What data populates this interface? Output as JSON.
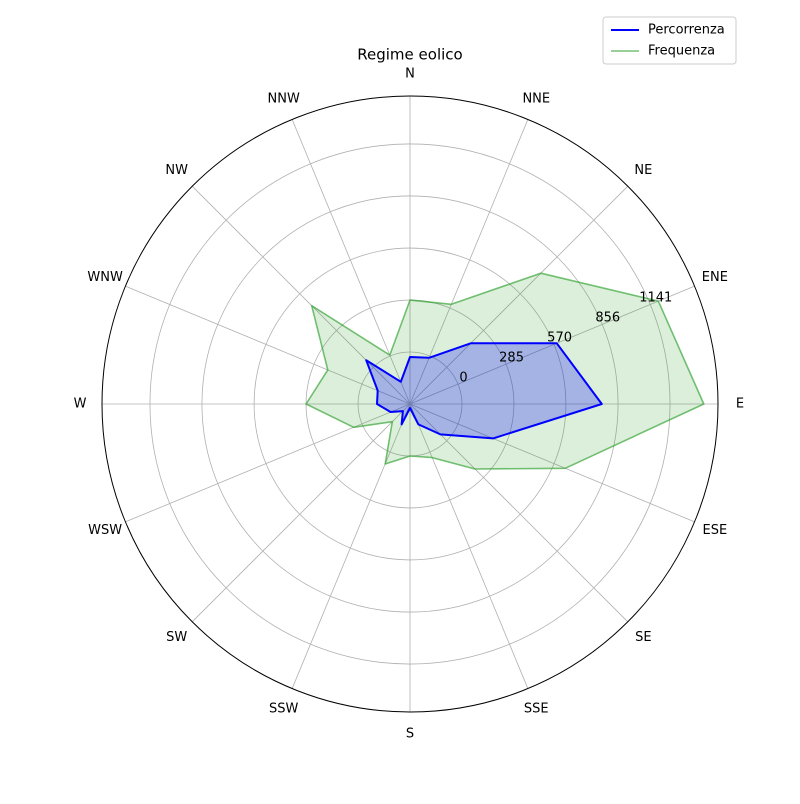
{
  "chart_data": {
    "type": "radar",
    "title": "Regime eolico",
    "categories": [
      "N",
      "NNE",
      "NE",
      "ENE",
      "E",
      "ESE",
      "SE",
      "SSE",
      "S",
      "SSW",
      "SW",
      "WSW",
      "W",
      "WNW",
      "NW",
      "NNW"
    ],
    "series": [
      {
        "name": "Percorrenza",
        "color": "#0000ff",
        "values": [
          -27,
          -11,
          186,
          586,
          767,
          208,
          -49,
          -164,
          -263,
          -164,
          -230,
          -170,
          -104,
          -93,
          55,
          -153
        ]
      },
      {
        "name": "Frequenza",
        "color": "#2ca02c",
        "values": [
          285,
          307,
          729,
          1189,
          1326,
          636,
          219,
          33,
          0,
          71,
          -148,
          49,
          285,
          203,
          477,
          5
        ]
      }
    ],
    "rlim": [
      -285,
      1404
    ],
    "rticks": [
      0,
      285,
      570,
      856,
      1141
    ],
    "grid": true,
    "legend": "upper right"
  }
}
